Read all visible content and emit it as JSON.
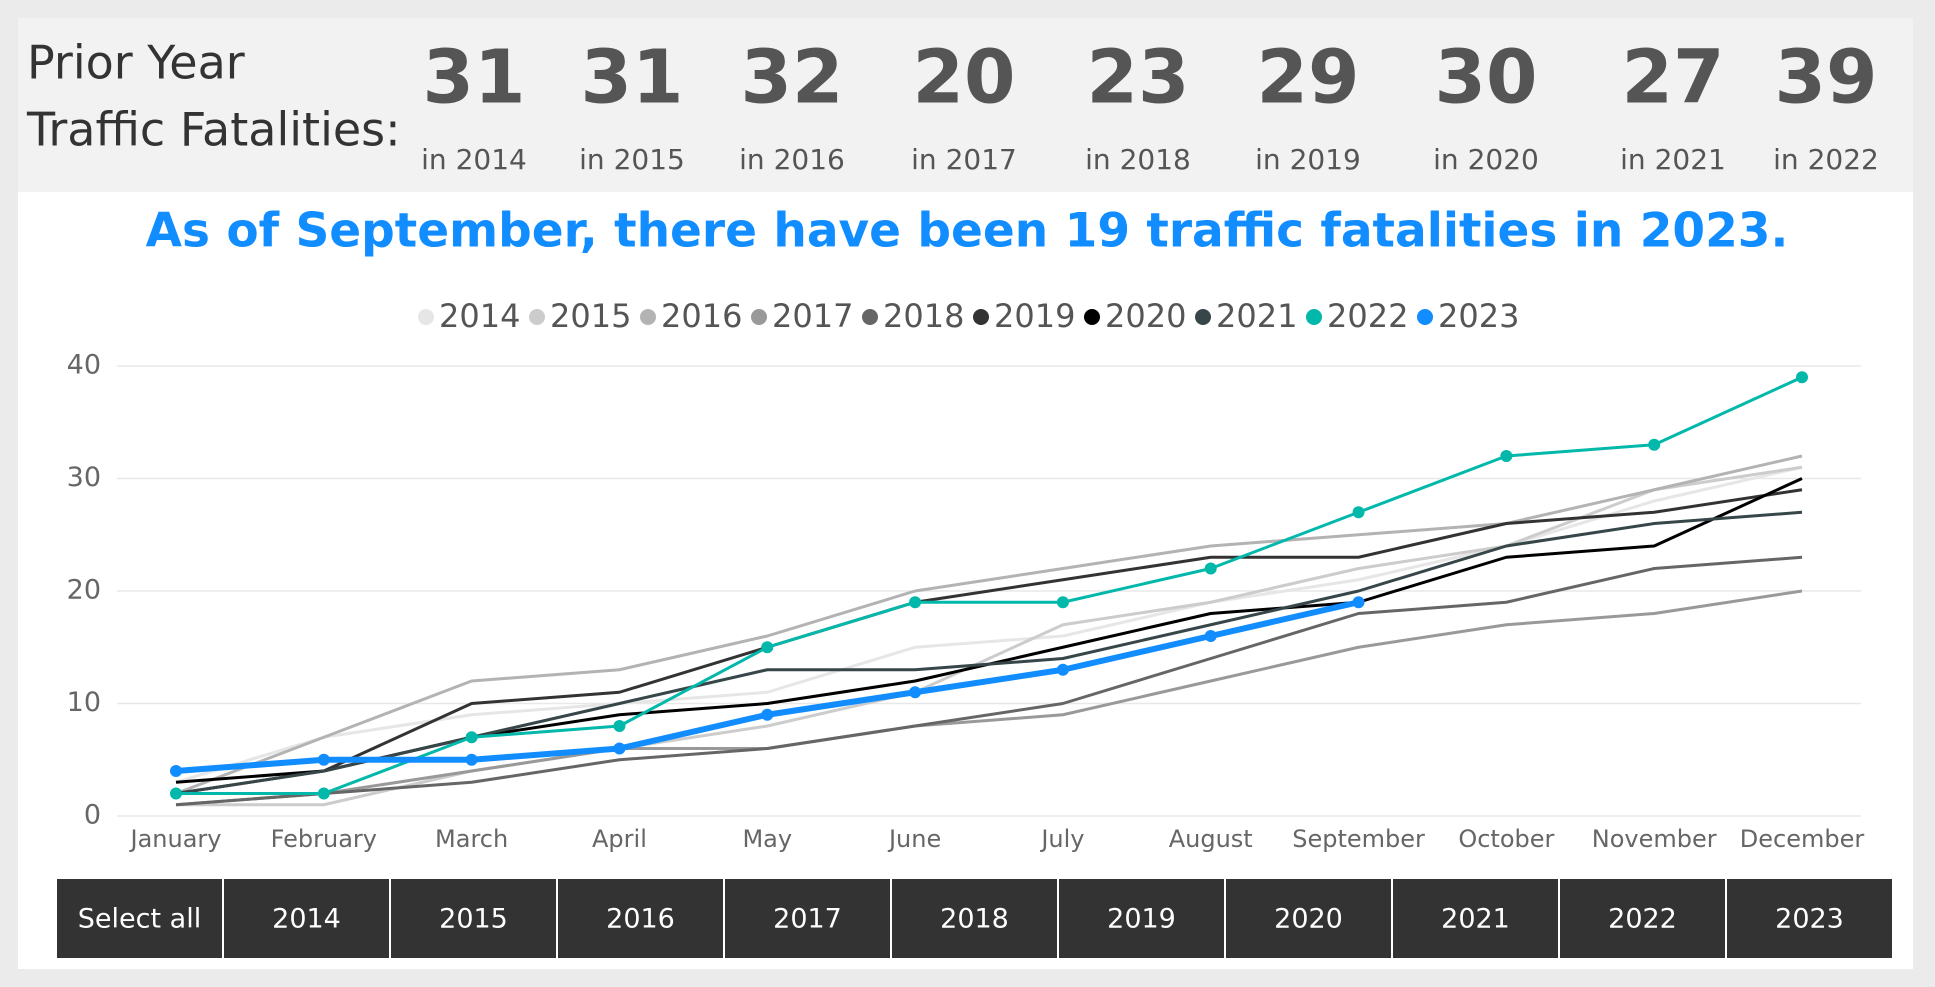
{
  "header": {
    "label": [
      "Prior Year",
      "Traffic Fatalities:"
    ],
    "kpis": [
      {
        "value": 31,
        "label": "in 2014"
      },
      {
        "value": 31,
        "label": "in 2015"
      },
      {
        "value": 32,
        "label": "in 2016"
      },
      {
        "value": 20,
        "label": "in 2017"
      },
      {
        "value": 23,
        "label": "in 2018"
      },
      {
        "value": 29,
        "label": "in 2019"
      },
      {
        "value": 30,
        "label": "in 2020"
      },
      {
        "value": 27,
        "label": "in 2021"
      },
      {
        "value": 39,
        "label": "in 2022"
      }
    ]
  },
  "chart_data": {
    "type": "line",
    "title": "As of September, there have been 19 traffic fatalities in 2023.",
    "categories": [
      "January",
      "February",
      "March",
      "April",
      "May",
      "June",
      "July",
      "August",
      "September",
      "October",
      "November",
      "December"
    ],
    "ylim": [
      0,
      40
    ],
    "yticks": [
      0,
      10,
      20,
      30,
      40
    ],
    "grid": true,
    "legend": "top",
    "series": [
      {
        "name": "2014",
        "color": "#e6e6e6",
        "line_width": 3,
        "markers": false,
        "values": [
          3,
          7,
          9,
          10,
          11,
          15,
          16,
          19,
          21,
          24,
          28,
          31
        ]
      },
      {
        "name": "2015",
        "color": "#cccccc",
        "line_width": 3,
        "markers": false,
        "values": [
          1,
          1,
          4,
          6,
          8,
          11,
          17,
          19,
          22,
          24,
          29,
          31
        ]
      },
      {
        "name": "2016",
        "color": "#b3b3b3",
        "line_width": 3,
        "markers": false,
        "values": [
          2,
          7,
          12,
          13,
          16,
          20,
          22,
          24,
          25,
          26,
          29,
          32
        ]
      },
      {
        "name": "2017",
        "color": "#999999",
        "line_width": 3,
        "markers": false,
        "values": [
          1,
          2,
          4,
          6,
          6,
          8,
          9,
          12,
          15,
          17,
          18,
          20
        ]
      },
      {
        "name": "2018",
        "color": "#666666",
        "line_width": 3,
        "markers": false,
        "values": [
          1,
          2,
          3,
          5,
          6,
          8,
          10,
          14,
          18,
          19,
          22,
          23
        ]
      },
      {
        "name": "2019",
        "color": "#333333",
        "line_width": 3,
        "markers": false,
        "values": [
          2,
          4,
          10,
          11,
          15,
          19,
          21,
          23,
          23,
          26,
          27,
          29
        ]
      },
      {
        "name": "2020",
        "color": "#000000",
        "line_width": 3,
        "markers": false,
        "values": [
          3,
          4,
          7,
          9,
          10,
          12,
          15,
          18,
          19,
          23,
          24,
          30
        ]
      },
      {
        "name": "2021",
        "color": "#374649",
        "line_width": 3,
        "markers": false,
        "values": [
          2,
          4,
          7,
          10,
          13,
          13,
          14,
          17,
          20,
          24,
          26,
          27
        ]
      },
      {
        "name": "2022",
        "color": "#01b8aa",
        "line_width": 3,
        "markers": true,
        "values": [
          2,
          2,
          7,
          8,
          15,
          19,
          19,
          22,
          27,
          32,
          33,
          39
        ]
      },
      {
        "name": "2023",
        "color": "#118dff",
        "line_width": 6,
        "markers": true,
        "values": [
          4,
          5,
          5,
          6,
          9,
          11,
          13,
          16,
          19,
          null,
          null,
          null
        ]
      }
    ]
  },
  "slicer": {
    "buttons": [
      "Select all",
      "2014",
      "2015",
      "2016",
      "2017",
      "2018",
      "2019",
      "2020",
      "2021",
      "2022",
      "2023"
    ]
  }
}
